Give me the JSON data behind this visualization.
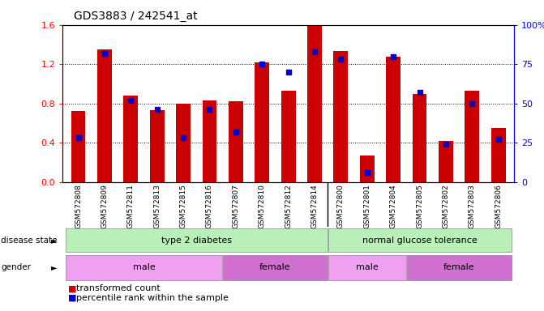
{
  "title": "GDS3883 / 242541_at",
  "samples": [
    "GSM572808",
    "GSM572809",
    "GSM572811",
    "GSM572813",
    "GSM572815",
    "GSM572816",
    "GSM572807",
    "GSM572810",
    "GSM572812",
    "GSM572814",
    "GSM572800",
    "GSM572801",
    "GSM572804",
    "GSM572805",
    "GSM572802",
    "GSM572803",
    "GSM572806"
  ],
  "red_values": [
    0.72,
    1.35,
    0.88,
    0.73,
    0.8,
    0.83,
    0.82,
    1.22,
    0.93,
    1.6,
    1.33,
    0.27,
    1.28,
    0.9,
    0.42,
    0.93,
    0.55
  ],
  "blue_pct": [
    28,
    82,
    52,
    46,
    28,
    46,
    32,
    75,
    70,
    83,
    78,
    6,
    80,
    57,
    24,
    50,
    27
  ],
  "ylim_left": [
    0,
    1.6
  ],
  "ylim_right": [
    0,
    100
  ],
  "yticks_left": [
    0,
    0.4,
    0.8,
    1.2,
    1.6
  ],
  "yticks_right": [
    0,
    25,
    50,
    75,
    100
  ],
  "bar_color": "#cc0000",
  "blue_color": "#0000cc",
  "ds_groups": [
    {
      "label": "type 2 diabetes",
      "start": 0,
      "end": 9,
      "color": "#b8f0b8"
    },
    {
      "label": "normal glucose tolerance",
      "start": 10,
      "end": 16,
      "color": "#b8f0b8"
    }
  ],
  "gender_groups": [
    {
      "label": "male",
      "start": 0,
      "end": 5,
      "color": "#f0a0f0"
    },
    {
      "label": "female",
      "start": 6,
      "end": 9,
      "color": "#d070d0"
    },
    {
      "label": "male",
      "start": 10,
      "end": 12,
      "color": "#f0a0f0"
    },
    {
      "label": "female",
      "start": 13,
      "end": 16,
      "color": "#d070d0"
    }
  ],
  "legend_items": [
    "transformed count",
    "percentile rank within the sample"
  ]
}
